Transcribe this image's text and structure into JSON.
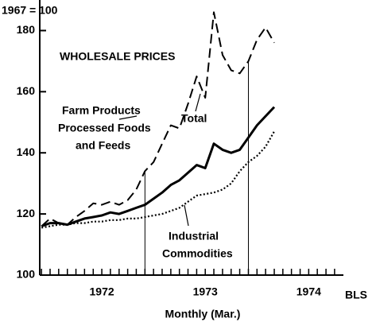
{
  "chart_data": {
    "type": "line",
    "title": "WHOLESALE PRICES",
    "subtitle": "1967 = 100",
    "x_label": "Monthly (Mar.)",
    "source": "BLS",
    "xlim": [
      1971.9,
      1974.82
    ],
    "ylim": [
      100,
      190
    ],
    "yticks": [
      100,
      120,
      140,
      160,
      180
    ],
    "xticks": [
      {
        "value": 1972.5,
        "label": "1972"
      },
      {
        "value": 1973.5,
        "label": "1973"
      },
      {
        "value": 1974.5,
        "label": "1974"
      }
    ],
    "xminorticks": [
      1971.917,
      1972,
      1972.083,
      1972.167,
      1972.25,
      1972.333,
      1972.417,
      1972.5,
      1972.583,
      1972.667,
      1972.75,
      1972.833,
      1972.917,
      1973,
      1973.083,
      1973.167,
      1973.25,
      1973.333,
      1973.417,
      1973.5,
      1973.583,
      1973.667,
      1973.75,
      1973.833,
      1973.917,
      1974,
      1974.083,
      1974.167,
      1974.25,
      1974.333,
      1974.417,
      1974.5,
      1974.583,
      1974.667,
      1974.75
    ],
    "reference_lines": [
      1972.917,
      1973.917
    ],
    "x": [
      1971.917,
      1972,
      1972.083,
      1972.167,
      1972.25,
      1972.333,
      1972.417,
      1972.5,
      1972.583,
      1972.667,
      1972.75,
      1972.833,
      1972.917,
      1973,
      1973.083,
      1973.167,
      1973.25,
      1973.333,
      1973.417,
      1973.5,
      1973.583,
      1973.667,
      1973.75,
      1973.833,
      1973.917,
      1974,
      1974.083,
      1974.167
    ],
    "series": [
      {
        "name": [
          "Farm Products",
          "Processed Foods",
          "and Feeds"
        ],
        "style": "dashed",
        "color": "#000000",
        "values": [
          116,
          118.5,
          117,
          116.5,
          119,
          121,
          123.5,
          123,
          124,
          123,
          124.5,
          128,
          134,
          137,
          143,
          149,
          148,
          156,
          165,
          158,
          186,
          172,
          167,
          166,
          170,
          177,
          181,
          176
        ]
      },
      {
        "name": [
          "Total"
        ],
        "style": "solid",
        "color": "#000000",
        "values": [
          116,
          117,
          117,
          116.5,
          117.5,
          118.5,
          119,
          119.5,
          120.5,
          120,
          121,
          122,
          123,
          125,
          127,
          129.5,
          131,
          133.5,
          136,
          135,
          143,
          141,
          140,
          141,
          145,
          149,
          152,
          155
        ]
      },
      {
        "name": [
          "Industrial",
          "Commodities"
        ],
        "style": "dotted",
        "color": "#000000",
        "values": [
          115.5,
          116,
          116.5,
          116.5,
          117,
          117,
          117.5,
          117.5,
          118,
          118,
          118.5,
          118.5,
          119,
          119.5,
          120,
          121,
          122,
          124,
          126,
          126.5,
          127,
          128,
          130,
          134,
          137,
          139,
          142,
          147
        ]
      }
    ]
  }
}
